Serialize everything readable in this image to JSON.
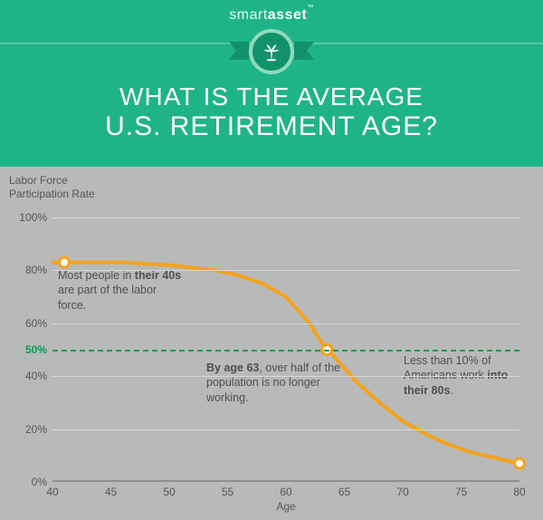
{
  "header": {
    "logo_thin": "smart",
    "logo_bold": "asset",
    "logo_tm": "™",
    "title_line1": "WHAT IS THE AVERAGE",
    "title_line2": "U.S. RETIREMENT AGE?",
    "bg_color": "#1fb487",
    "badge_color": "#12926b",
    "badge_ring": "#8fd9bf"
  },
  "chart": {
    "type": "line",
    "bg_color": "#b8b9b9",
    "grid_color": "#d6d7d7",
    "line_color": "#f5a31a",
    "line_width": 4,
    "point_fill": "#ffffff",
    "dash_color": "#0b9a52",
    "y_label_line1": "Labor Force",
    "y_label_line2": "Participation Rate",
    "x_label": "Age",
    "xlim": [
      40,
      80
    ],
    "ylim": [
      0,
      100
    ],
    "xticks": [
      40,
      45,
      50,
      55,
      60,
      65,
      70,
      75,
      80
    ],
    "yticks": [
      {
        "v": 0,
        "label": "0%"
      },
      {
        "v": 20,
        "label": "20%"
      },
      {
        "v": 40,
        "label": "40%"
      },
      {
        "v": 50,
        "label": "50%",
        "accent": true
      },
      {
        "v": 60,
        "label": "60%"
      },
      {
        "v": 80,
        "label": "80%"
      },
      {
        "v": 100,
        "label": "100%"
      }
    ],
    "ref_line": 50,
    "series": {
      "x": [
        40,
        42,
        44,
        46,
        48,
        50,
        52,
        54,
        56,
        58,
        60,
        62,
        63,
        64,
        66,
        68,
        70,
        72,
        74,
        76,
        78,
        80
      ],
      "y": [
        83,
        83,
        83,
        83,
        82.5,
        82,
        81,
        80,
        78,
        75,
        70,
        60,
        53,
        48,
        38,
        30,
        23,
        18,
        14,
        11,
        9,
        7
      ]
    },
    "markers": [
      {
        "x": 41,
        "y": 83
      },
      {
        "x": 63.5,
        "y": 50
      },
      {
        "x": 80,
        "y": 7
      }
    ],
    "annotations": {
      "a1_pre": "Most people in ",
      "a1_b": "their 40s",
      "a1_post": " are part of the labor force.",
      "a2_b": "By age 63",
      "a2_post": ", over half of the population is no longer working.",
      "a3_pre": "Less than 10% of Americans work ",
      "a3_b": "into their 80s",
      "a3_post": "."
    }
  }
}
